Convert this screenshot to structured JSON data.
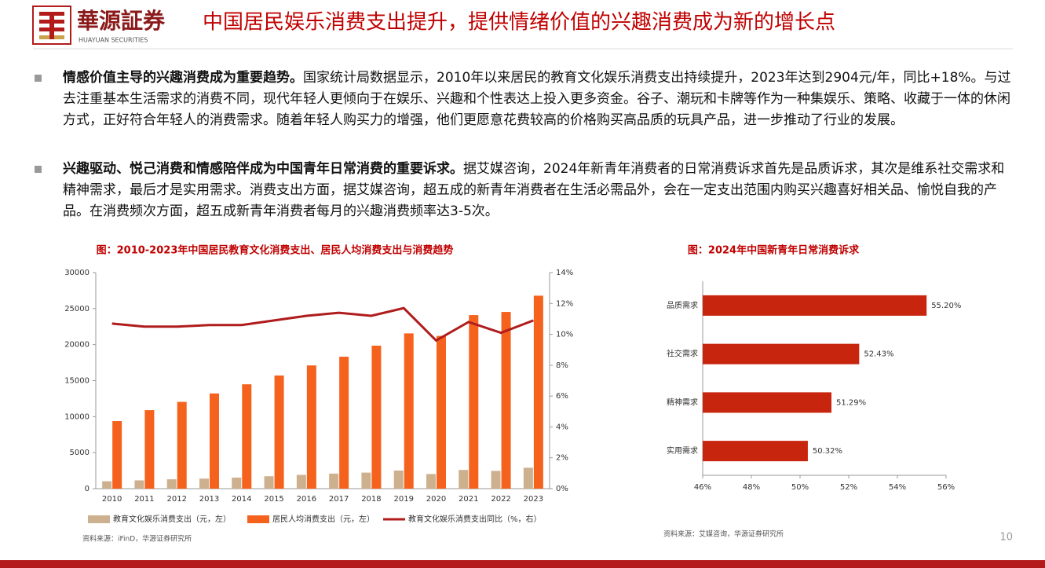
{
  "header": {
    "logo_name": "華源証券",
    "logo_sub": "HUAYUAN SECURITIES",
    "title": "中国居民娱乐消费支出提升，提供情绪价值的兴趣消费成为新的增长点"
  },
  "bullets": [
    {
      "lead": "情感价值主导的兴趣消费成为重要趋势。",
      "text": "国家统计局数据显示，2010年以来居民的教育文化娱乐消费支出持续提升，2023年达到2904元/年，同比+18%。与过去注重基本生活需求的消费不同，现代年轻人更倾向于在娱乐、兴趣和个性表达上投入更多资金。谷子、潮玩和卡牌等作为一种集娱乐、策略、收藏于一体的休闲方式，正好符合年轻人的消费需求。随着年轻人购买力的增强，他们更愿意花费较高的价格购买高品质的玩具产品，进一步推动了行业的发展。"
    },
    {
      "lead": "兴趣驱动、悦己消费和情感陪伴成为中国青年日常消费的重要诉求。",
      "text": "据艾媒咨询，2024年新青年消费者的日常消费诉求首先是品质诉求，其次是维系社交需求和精神需求，最后才是实用需求。消费支出方面，据艾媒咨询，超五成的新青年消费者在生活必需品外，会在一定支出范围内购买兴趣喜好相关品、愉悦自我的产品。在消费频次方面，超五成新青年消费者每月的兴趣消费频率达3-5次。"
    }
  ],
  "chart_data": [
    {
      "type": "bar",
      "title": "图：2010-2023年中国居民教育文化消费支出、居民人均消费支出与消费趋势",
      "categories": [
        "2010",
        "2011",
        "2012",
        "2013",
        "2014",
        "2015",
        "2016",
        "2017",
        "2018",
        "2019",
        "2020",
        "2021",
        "2022",
        "2023"
      ],
      "series": [
        {
          "name": "教育文化娱乐消费支出（元，左）",
          "color": "#cdb08e",
          "values": [
            1030,
            1150,
            1300,
            1398,
            1536,
            1723,
            1915,
            2086,
            2226,
            2513,
            2032,
            2599,
            2469,
            2904
          ]
        },
        {
          "name": "居民人均消费支出（元，左）",
          "color": "#f5621e",
          "values": [
            9380,
            10900,
            12050,
            13220,
            14491,
            15712,
            17111,
            18322,
            19853,
            21559,
            21210,
            24100,
            24538,
            26796
          ]
        },
        {
          "name": "教育文化娱乐消费支出同比（%，右）",
          "color": "#b01c1c",
          "type": "line",
          "axis": "y2",
          "values": [
            10.7,
            10.5,
            10.5,
            10.6,
            10.6,
            10.9,
            11.2,
            11.4,
            11.2,
            11.7,
            9.6,
            10.8,
            10.1,
            10.9
          ]
        }
      ],
      "ylim": [
        0,
        30000
      ],
      "yticks": [
        0,
        5000,
        10000,
        15000,
        20000,
        25000,
        30000
      ],
      "y2lim": [
        0,
        14
      ],
      "y2ticks": [
        {
          "value": 0,
          "label": "0%"
        },
        {
          "value": 2,
          "label": "2%"
        },
        {
          "value": 4,
          "label": "4%"
        },
        {
          "value": 6,
          "label": "6%"
        },
        {
          "value": 8,
          "label": "8%"
        },
        {
          "value": 10,
          "label": "10%"
        },
        {
          "value": 12,
          "label": "12%"
        },
        {
          "value": 14,
          "label": "14%"
        }
      ],
      "source": "资料来源：iFinD，华源证券研究所"
    },
    {
      "type": "barh",
      "title": "图：2024年中国新青年日常消费诉求",
      "categories": [
        "品质需求",
        "社交需求",
        "精神需求",
        "实用需求"
      ],
      "values": [
        55.2,
        52.43,
        51.29,
        50.32
      ],
      "value_labels": [
        "55.20%",
        "52.43%",
        "51.29%",
        "50.32%"
      ],
      "color": "#c8250f",
      "xlim": [
        46,
        56
      ],
      "xticks": [
        {
          "value": 46,
          "label": "46%"
        },
        {
          "value": 48,
          "label": "48%"
        },
        {
          "value": 50,
          "label": "50%"
        },
        {
          "value": 52,
          "label": "52%"
        },
        {
          "value": 54,
          "label": "54%"
        },
        {
          "value": 56,
          "label": "56%"
        }
      ],
      "source": "资料来源：艾媒咨询，华源证券研究所"
    }
  ],
  "page_number": "10"
}
